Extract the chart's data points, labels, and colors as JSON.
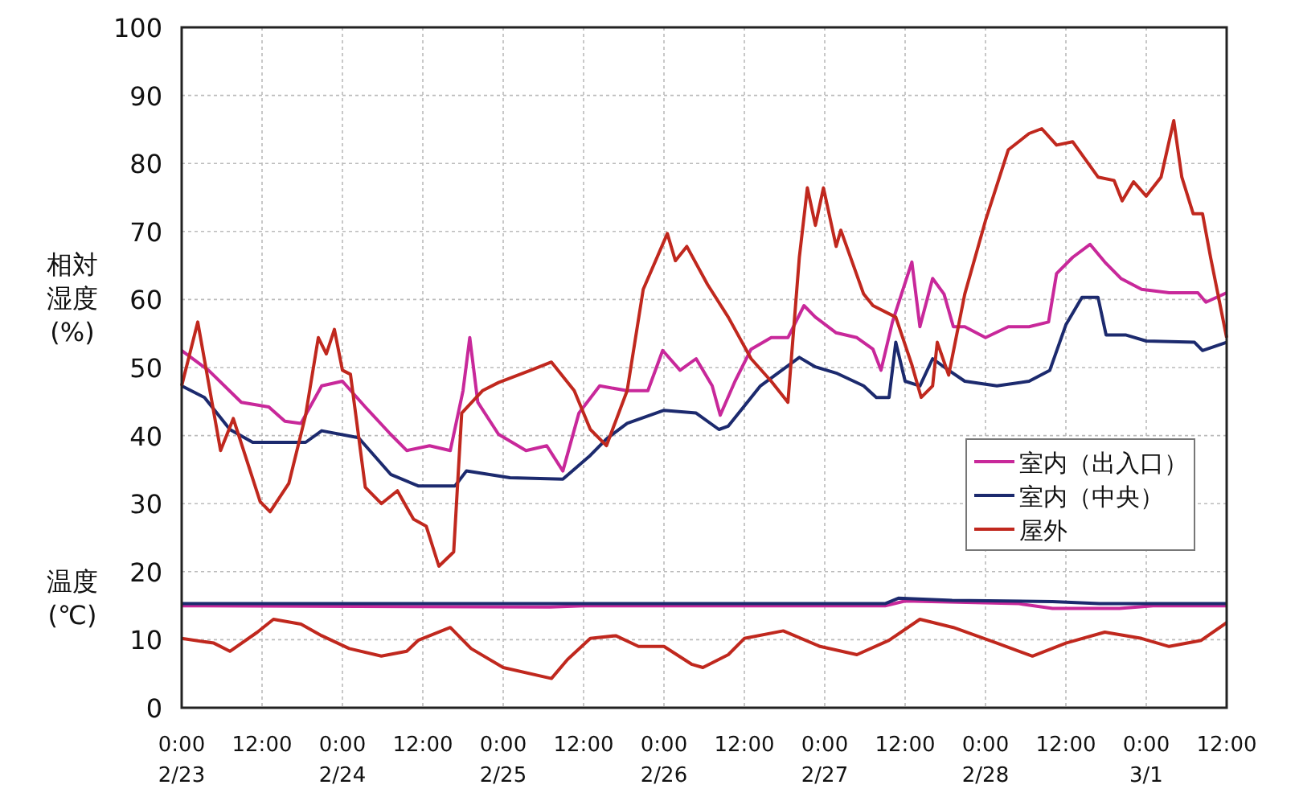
{
  "chart_data": {
    "type": "line",
    "ylabel": "相対湿度(%)",
    "annotations": [
      "温度(℃)"
    ],
    "xlim": [
      "--02-23T00:00",
      "--03-01T12:00"
    ],
    "ylim": [
      0,
      100
    ],
    "xticks": [
      {
        "value": "--02-23T00:00",
        "label": "0:00\n2/23"
      },
      {
        "value": "--02-23T12:00",
        "label": "12:00"
      },
      {
        "value": "--02-24T00:00",
        "label": "0:00\n2/24"
      },
      {
        "value": "--02-24T12:00",
        "label": "12:00"
      },
      {
        "value": "--02-25T00:00",
        "label": "0:00\n2/25"
      },
      {
        "value": "--02-25T12:00",
        "label": "12:00"
      },
      {
        "value": "--02-26T00:00",
        "label": "0:00\n2/26"
      },
      {
        "value": "--02-26T12:00",
        "label": "12:00"
      },
      {
        "value": "--02-27T00:00",
        "label": "0:00\n2/27"
      },
      {
        "value": "--02-27T12:00",
        "label": "12:00"
      },
      {
        "value": "--02-28T00:00",
        "label": "0:00\n2/28"
      },
      {
        "value": "--02-28T12:00",
        "label": "12:00"
      },
      {
        "value": "--03-01T00:00",
        "label": "0:00\n3/1"
      },
      {
        "value": "--03-01T12:00",
        "label": "12:00"
      }
    ],
    "yticks": [
      0,
      10,
      20,
      30,
      40,
      50,
      60,
      70,
      80,
      90,
      100
    ],
    "grid": true,
    "legend": "right",
    "marker": "none",
    "line_style": "solid",
    "series": [
      {
        "name": "室内（出入口）",
        "color": "#c8289a",
        "x": [
          "--02-23T00:00",
          "--02-23T04:00",
          "--02-23T08:54",
          "--02-23T13:00",
          "--02-23T15:24",
          "--02-23T17:48",
          "--02-23T20:54",
          "--02-24T00:00",
          "--02-24T03:24",
          "--02-24T07:12",
          "--02-24T09:36",
          "--02-24T13:00",
          "--02-24T16:06",
          "--02-24T18:00",
          "--02-24T19:00",
          "--02-24T20:12",
          "--02-24T23:18",
          "--02-25T03:24",
          "--02-25T06:30",
          "--02-25T08:54",
          "--02-25T11:18",
          "--02-25T14:24",
          "--02-25T18:30",
          "--02-25T21:36",
          "--02-25T23:48",
          "--02-26T02:24",
          "--02-26T04:48",
          "--02-26T07:12",
          "--02-26T08:24",
          "--02-26T10:36",
          "--02-26T13:00",
          "--02-26T16:00",
          "--02-26T18:30",
          "--02-26T20:54",
          "--02-26T22:36",
          "--02-27T01:42",
          "--02-27T04:48",
          "--02-27T07:12",
          "--02-27T08:24",
          "--02-27T10:06",
          "--02-27T13:00",
          "--02-27T14:12",
          "--02-27T16:06",
          "--02-27T17:48",
          "--02-27T19:12",
          "--02-27T20:54",
          "--02-28T00:00",
          "--02-28T03:24",
          "--02-28T06:30",
          "--02-28T09:24",
          "--02-28T10:36",
          "--02-28T13:00",
          "--02-28T15:36",
          "--02-28T17:48",
          "--02-28T20:12",
          "--02-28T23:18",
          "--03-01T03:24",
          "--03-01T07:42",
          "--03-01T08:54",
          "--03-01T12:00"
        ],
        "values": [
          52.5,
          49.6,
          44.9,
          44.2,
          42.1,
          41.8,
          47.3,
          48,
          44.2,
          40.2,
          37.8,
          38.5,
          37.8,
          46.6,
          54.4,
          44.9,
          40.2,
          37.8,
          38.5,
          34.8,
          43.3,
          47.3,
          46.6,
          46.6,
          52.5,
          49.6,
          51.3,
          47.3,
          43,
          48,
          52.7,
          54.4,
          54.4,
          59.1,
          57.4,
          55.1,
          54.4,
          52.7,
          49.6,
          56.7,
          65.5,
          56,
          63.1,
          60.8,
          56,
          56,
          54.4,
          56,
          56,
          56.7,
          63.8,
          66.2,
          68.1,
          65.5,
          63.1,
          61.5,
          61,
          61,
          59.6,
          61
        ]
      },
      {
        "name": "室内（中央）",
        "color": "#1c2a6e",
        "x": [
          "--02-23T00:00",
          "--02-23T03:24",
          "--02-23T07:12",
          "--02-23T10:36",
          "--02-23T18:30",
          "--02-23T20:54",
          "--02-24T02:24",
          "--02-24T07:12",
          "--02-24T11:18",
          "--02-24T16:48",
          "--02-24T18:30",
          "--02-25T01:00",
          "--02-25T08:54",
          "--02-25T13:00",
          "--02-25T15:24",
          "--02-25T18:30",
          "--02-26T00:00",
          "--02-26T04:48",
          "--02-26T08:12",
          "--02-26T09:36",
          "--02-26T14:24",
          "--02-26T20:12",
          "--02-26T22:36",
          "--02-27T01:42",
          "--02-27T05:48",
          "--02-27T07:42",
          "--02-27T09:36",
          "--02-27T10:36",
          "--02-27T12:00",
          "--02-27T14:12",
          "--02-27T16:06",
          "--02-27T18:30",
          "--02-27T20:54",
          "--02-28T01:42",
          "--02-28T06:30",
          "--02-28T09:36",
          "--02-28T12:00",
          "--02-28T14:24",
          "--02-28T16:48",
          "--02-28T18:00",
          "--02-28T20:54",
          "--03-01T00:00",
          "--03-01T07:12",
          "--03-01T08:24",
          "--03-01T12:00"
        ],
        "values": [
          47.3,
          45.6,
          40.9,
          39,
          39,
          40.7,
          39.7,
          34.3,
          32.6,
          32.6,
          34.8,
          33.8,
          33.6,
          37.1,
          39.5,
          41.8,
          43.7,
          43.3,
          40.9,
          41.4,
          47.3,
          51.5,
          50.1,
          49.2,
          47.3,
          45.6,
          45.6,
          53.7,
          48,
          47.3,
          51.3,
          49.6,
          48,
          47.3,
          48,
          49.6,
          56.3,
          60.3,
          60.3,
          54.8,
          54.8,
          53.9,
          53.7,
          52.5,
          53.7
        ]
      },
      {
        "name": "屋外",
        "color": "#c0281e",
        "x": [
          "--02-23T00:00",
          "--02-23T02:24",
          "--02-23T05:48",
          "--02-23T07:42",
          "--02-23T11:42",
          "--02-23T13:12",
          "--02-23T16:00",
          "--02-23T18:30",
          "--02-23T20:24",
          "--02-23T21:36",
          "--02-23T22:48",
          "--02-24T00:00",
          "--02-24T01:12",
          "--02-24T03:24",
          "--02-24T05:48",
          "--02-24T08:12",
          "--02-24T10:36",
          "--02-24T12:30",
          "--02-24T14:24",
          "--02-24T16:36",
          "--02-24T17:48",
          "--02-24T20:54",
          "--02-24T23:18",
          "--02-25T04:06",
          "--02-25T07:12",
          "--02-25T10:36",
          "--02-25T13:00",
          "--02-25T15:24",
          "--02-25T18:30",
          "--02-25T20:54",
          "--02-26T00:30",
          "--02-26T01:42",
          "--02-26T03:24",
          "--02-26T06:30",
          "--02-26T09:36",
          "--02-26T13:00",
          "--02-26T16:00",
          "--02-26T18:30",
          "--02-26T20:12",
          "--02-26T21:24",
          "--02-26T22:36",
          "--02-26T23:48",
          "--02-27T01:42",
          "--02-27T02:24",
          "--02-27T05:48",
          "--02-27T07:12",
          "--02-27T10:36",
          "--02-27T13:00",
          "--02-27T14:24",
          "--02-27T16:06",
          "--02-27T16:48",
          "--02-27T18:30",
          "--02-27T20:54",
          "--02-28T00:00",
          "--02-28T03:24",
          "--02-28T06:30",
          "--02-28T08:24",
          "--02-28T10:36",
          "--02-28T13:00",
          "--02-28T16:48",
          "--02-28T19:12",
          "--02-28T20:24",
          "--02-28T22:06",
          "--03-01T00:00",
          "--03-01T02:12",
          "--03-01T04:06",
          "--03-01T05:18",
          "--03-01T07:00",
          "--03-01T08:24",
          "--03-01T09:36",
          "--03-01T12:00"
        ],
        "values": [
          47.3,
          56.7,
          37.8,
          42.5,
          30.3,
          28.8,
          33,
          43,
          54.4,
          52,
          55.6,
          49.6,
          49,
          32.4,
          30,
          31.9,
          27.7,
          26.7,
          20.8,
          22.9,
          43.3,
          46.6,
          47.8,
          49.6,
          50.8,
          46.6,
          40.9,
          38.5,
          46.6,
          61.5,
          69.7,
          65.7,
          67.8,
          62.2,
          57.4,
          51.3,
          48,
          44.9,
          66.2,
          76.4,
          70.9,
          76.4,
          67.8,
          70.2,
          60.8,
          59.1,
          57.4,
          50.4,
          45.6,
          47.3,
          53.7,
          48.9,
          60.8,
          71.6,
          82,
          84.4,
          85.1,
          82.7,
          83.2,
          78,
          77.5,
          74.5,
          77.3,
          75.2,
          78,
          86.3,
          78,
          72.6,
          72.6,
          66.2,
          54.4
        ]
      },
      {
        "color": "#c8289a",
        "x": [
          "--02-23T00:00",
          "--02-25T07:00",
          "--02-25T12:00",
          "--02-27T09:00",
          "--02-27T12:00",
          "--02-28T05:00",
          "--02-28T10:00",
          "--02-28T20:00",
          "--03-01T01:00",
          "--03-01T12:00"
        ],
        "values": [
          15,
          14.8,
          15,
          15,
          15.7,
          15.3,
          14.6,
          14.6,
          15,
          15
        ]
      },
      {
        "color": "#1c2a6e",
        "x": [
          "--02-23T00:00",
          "--02-27T09:00",
          "--02-27T11:00",
          "--02-27T19:00",
          "--02-28T10:00",
          "--02-28T17:00",
          "--03-01T12:00"
        ],
        "values": [
          15.3,
          15.3,
          16.1,
          15.8,
          15.6,
          15.3,
          15.3
        ]
      },
      {
        "color": "#c0281e",
        "x": [
          "--02-23T00:00",
          "--02-23T04:48",
          "--02-23T07:12",
          "--02-23T11:18",
          "--02-23T13:42",
          "--02-23T17:48",
          "--02-23T20:54",
          "--02-24T01:00",
          "--02-24T05:48",
          "--02-24T09:36",
          "--02-24T11:18",
          "--02-24T16:06",
          "--02-24T19:12",
          "--02-25T00:00",
          "--02-25T07:12",
          "--02-25T09:36",
          "--02-25T13:00",
          "--02-25T16:48",
          "--02-25T20:12",
          "--02-26T00:00",
          "--02-26T04:06",
          "--02-26T05:48",
          "--02-26T09:36",
          "--02-26T12:00",
          "--02-26T17:48",
          "--02-26T23:18",
          "--02-27T04:48",
          "--02-27T09:36",
          "--02-27T14:12",
          "--02-27T19:12",
          "--02-28T01:42",
          "--02-28T07:00",
          "--02-28T12:00",
          "--02-28T17:48",
          "--02-28T23:18",
          "--03-01T03:24",
          "--03-01T08:12",
          "--03-01T12:00"
        ],
        "values": [
          10.2,
          9.5,
          8.3,
          11.1,
          13,
          12.3,
          10.6,
          8.7,
          7.6,
          8.3,
          9.9,
          11.8,
          8.7,
          5.9,
          4.3,
          7.1,
          10.2,
          10.6,
          9,
          9,
          6.4,
          5.9,
          7.8,
          10.2,
          11.3,
          9,
          7.8,
          9.9,
          13,
          11.8,
          9.5,
          7.6,
          9.5,
          11.1,
          10.2,
          9,
          9.9,
          12.5
        ]
      }
    ]
  }
}
